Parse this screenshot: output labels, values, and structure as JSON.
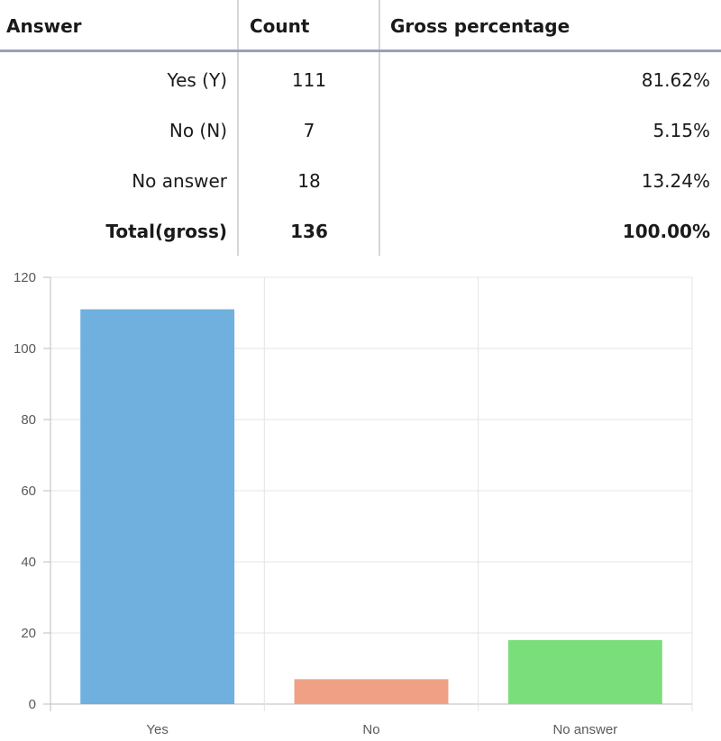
{
  "table": {
    "headers": [
      "Answer",
      "Count",
      "Gross percentage"
    ],
    "rows": [
      {
        "answer": "Yes (Y)",
        "count": "111",
        "percentage": "81.62%"
      },
      {
        "answer": "No (N)",
        "count": "7",
        "percentage": "5.15%"
      },
      {
        "answer": "No answer",
        "count": "18",
        "percentage": "13.24%"
      }
    ],
    "total": {
      "answer": "Total(gross)",
      "count": "136",
      "percentage": "100.00%"
    }
  },
  "chart_data": {
    "type": "bar",
    "categories": [
      "Yes",
      "No",
      "No answer"
    ],
    "values": [
      111,
      7,
      18
    ],
    "colors": [
      "#6fb0de",
      "#f0a084",
      "#7ade7a"
    ],
    "title": "",
    "xlabel": "",
    "ylabel": "",
    "ylim": [
      0,
      120
    ],
    "yticks": [
      0,
      20,
      40,
      60,
      80,
      100,
      120
    ],
    "grid": true
  }
}
